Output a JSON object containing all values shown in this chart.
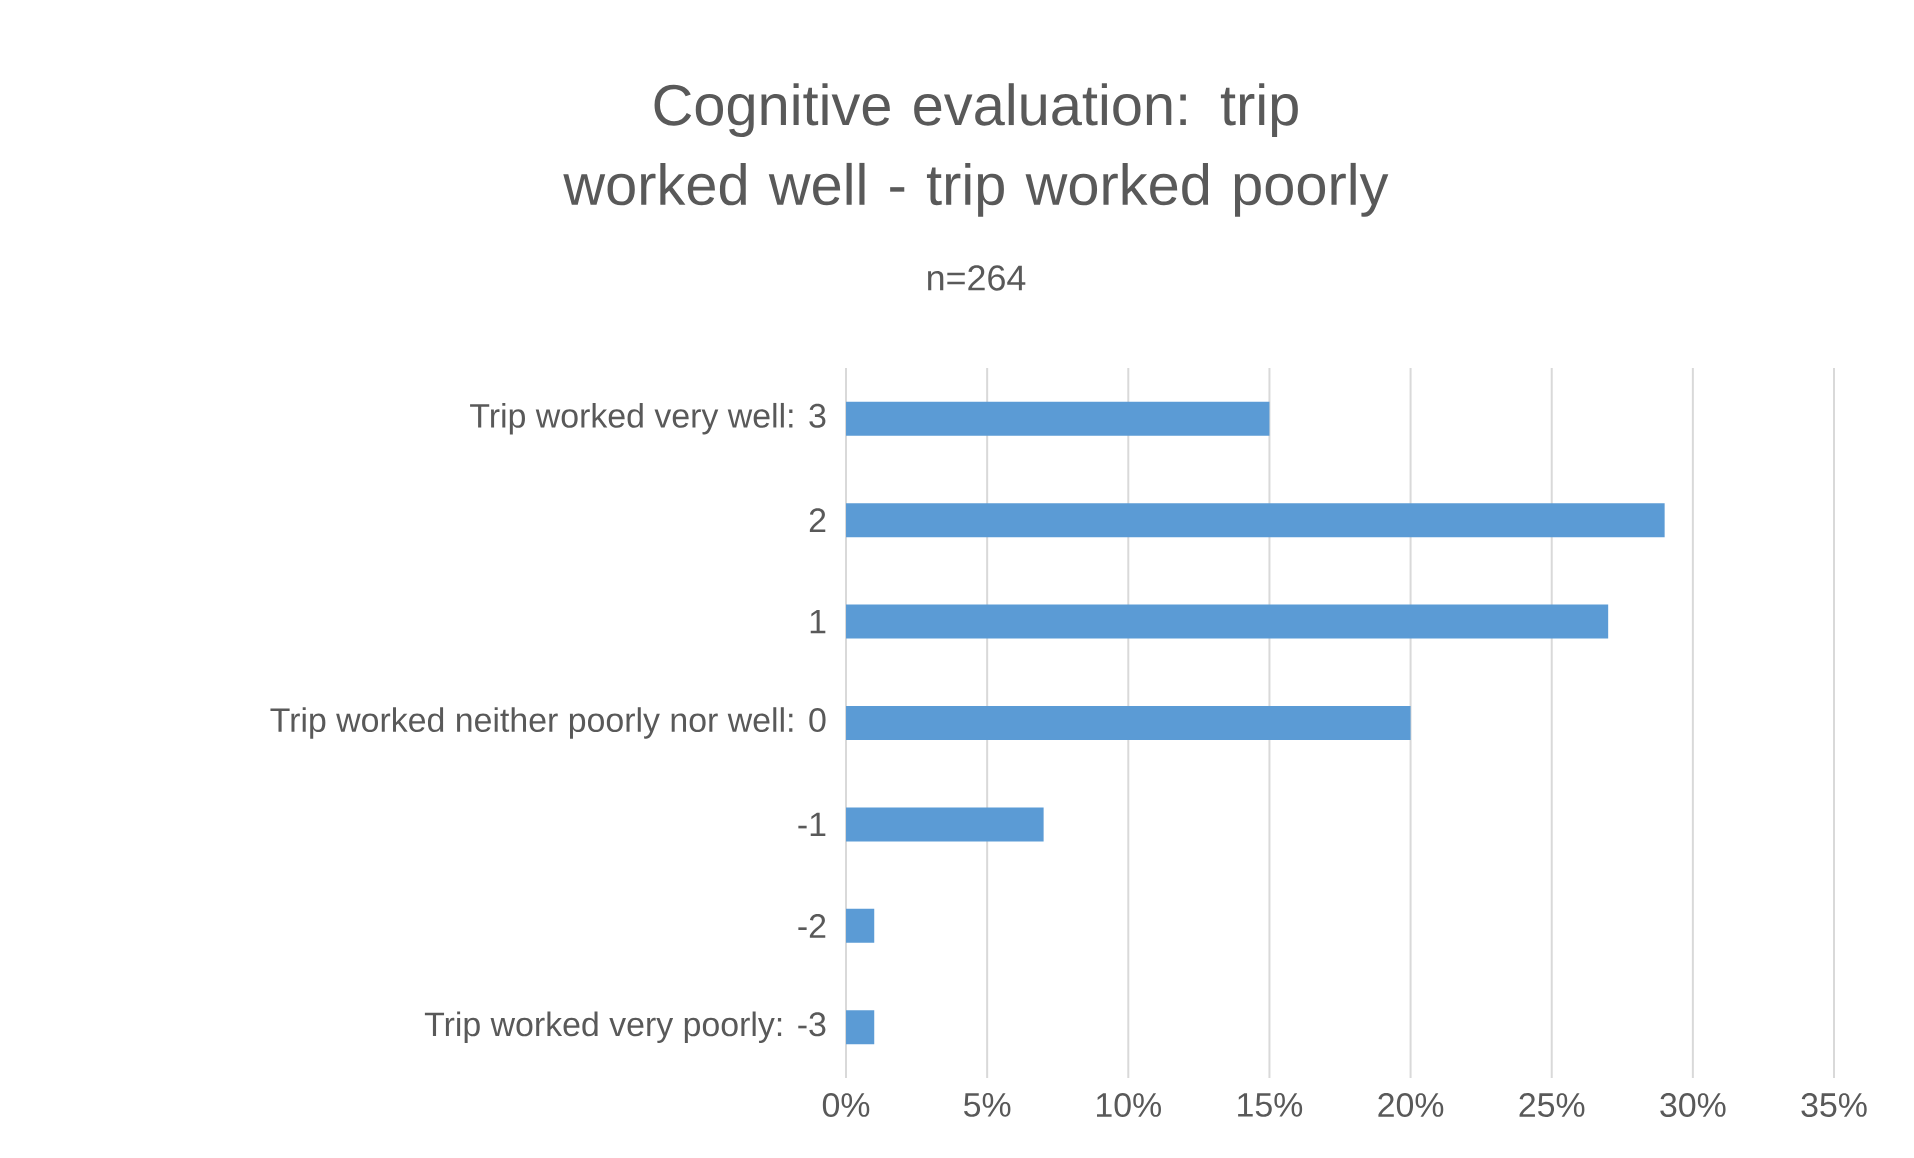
{
  "chart_data": {
    "type": "bar",
    "orientation": "horizontal",
    "title": "Cognitive evaluation: trip worked well - trip worked poorly",
    "subtitle": "n=264",
    "categories": [
      "Trip worked very well: 3",
      "2",
      "1",
      "Trip worked neither poorly nor well: 0",
      "-1",
      "-2",
      "Trip worked very poorly: -3"
    ],
    "values": [
      15,
      29,
      27,
      20,
      7,
      1,
      1
    ],
    "color": "#5b9bd5",
    "xlim": [
      0,
      35
    ],
    "xticks": [
      {
        "value": 0,
        "label": "0%"
      },
      {
        "value": 5,
        "label": "5%"
      },
      {
        "value": 10,
        "label": "10%"
      },
      {
        "value": 15,
        "label": "15%"
      },
      {
        "value": 20,
        "label": "20%"
      },
      {
        "value": 25,
        "label": "25%"
      },
      {
        "value": 30,
        "label": "30%"
      },
      {
        "value": 35,
        "label": "35%"
      }
    ],
    "grid": "x"
  }
}
